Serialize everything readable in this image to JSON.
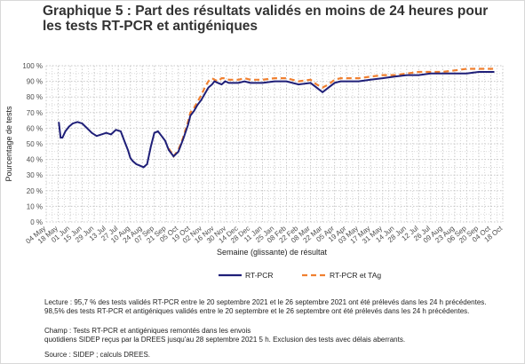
{
  "title_line1": "Graphique 5 : Part des résultats validés en moins de 24 heures pour",
  "title_line2": "les tests RT-PCR et antigéniques",
  "notes": {
    "lecture1": "Lecture : 95,7 % des tests validés RT-PCR entre le 20 septembre 2021 et le 26 septembre 2021 ont été prélevés dans les 24 h précédentes.",
    "lecture2": "98,5% des tests RT-PCR et antigéniques validés entre le 20 septembre et le 26 septembre ont été prélevés dans les 24 h précédentes.",
    "champ1": "Champ : Tests RT-PCR et antigéniques remontés dans les envois",
    "champ2": "quotidiens SIDEP reçus par la DREES jusqu'au 28 septembre 2021 5 h. Exclusion des tests avec délais aberrants.",
    "source": "Source : SIDEP ; calculs DREES."
  },
  "colors": {
    "rtpcr": "#1f1f78",
    "rtpcr_tag": "#f08030",
    "grid": "#c8c8c8"
  },
  "chart_data": {
    "type": "line",
    "xlabel": "Semaine (glissante) de résultat",
    "ylabel": "Pourcentage de tests",
    "ylim": [
      0,
      100
    ],
    "yticks": [
      "0 %",
      "10 %",
      "20 %",
      "30 %",
      "40 %",
      "50 %",
      "60 %",
      "70 %",
      "80 %",
      "90 %",
      "100 %"
    ],
    "xticks": [
      "04 May",
      "18 May",
      "01 Jun",
      "15 Jun",
      "29 Jun",
      "13 Jul",
      "27 Jul",
      "10 Aug",
      "24 Aug",
      "07 Sep",
      "21 Sep",
      "05 Oct",
      "19 Oct",
      "02 Nov",
      "16 Nov",
      "30 Nov",
      "14 Dec",
      "28 Dec",
      "11 Jan",
      "25 Jan",
      "08 Feb",
      "22 Feb",
      "08 Mar",
      "22 Mar",
      "05 Apr",
      "19 Apr",
      "03 May",
      "17 May",
      "31 May",
      "14 Jun",
      "28 Jun",
      "12 Jul",
      "26 Jul",
      "09 Aug",
      "23 Aug",
      "06 Sep",
      "20 Sep",
      "04 Oct",
      "18 Oct"
    ],
    "grid": true,
    "legend_position": "bottom",
    "series": [
      {
        "name": "RT-PCR",
        "style": "solid",
        "x": [
          1.05,
          1.2,
          1.35,
          1.6,
          1.9,
          2.2,
          2.6,
          3.0,
          3.4,
          3.8,
          4.2,
          4.6,
          5.0,
          5.4,
          5.8,
          6.2,
          6.5,
          6.8,
          7.0,
          7.2,
          7.5,
          7.8,
          8.1,
          8.4,
          8.7,
          9.0,
          9.3,
          9.6,
          9.9,
          10.2,
          10.6,
          11.0,
          11.4,
          11.8,
          12.0,
          12.3,
          12.6,
          12.9,
          13.2,
          13.5,
          13.8,
          14.0,
          14.3,
          14.6,
          14.9,
          15.2,
          15.6,
          16.0,
          16.5,
          17.0,
          17.5,
          18.0,
          19,
          20,
          21,
          22,
          22.5,
          23,
          23.5,
          24,
          24.5,
          25,
          25.5,
          26,
          27,
          28,
          29,
          30,
          31,
          32,
          33,
          34,
          35,
          36,
          37,
          37.3
        ],
        "y": [
          64,
          54,
          54,
          58,
          61,
          63,
          64,
          63,
          60,
          57,
          55,
          56,
          57,
          56,
          59,
          58,
          52,
          46,
          41,
          39,
          37,
          36,
          35,
          37,
          48,
          57,
          58,
          55,
          52,
          46,
          42,
          45,
          53,
          62,
          68,
          71,
          75,
          78,
          82,
          86,
          88,
          90,
          89,
          88,
          90,
          89,
          89,
          89,
          90,
          89,
          89,
          89,
          90,
          90,
          88,
          89,
          86,
          83,
          86,
          89,
          90,
          90,
          90,
          90,
          91,
          92,
          93,
          94,
          94,
          95,
          95,
          95,
          95,
          96,
          96,
          96
        ]
      },
      {
        "name": "RT-PCR et TAg",
        "style": "dashed",
        "x": [
          10.2,
          10.6,
          11.0,
          11.4,
          11.8,
          12.0,
          12.3,
          12.6,
          12.9,
          13.2,
          13.5,
          13.8,
          14.0,
          14.3,
          14.6,
          14.9,
          15.2,
          15.6,
          16.0,
          16.5,
          17.0,
          17.5,
          18.0,
          19,
          20,
          21,
          22,
          22.5,
          23,
          23.5,
          24,
          24.5,
          25,
          25.5,
          26,
          27,
          28,
          29,
          30,
          31,
          32,
          33,
          34,
          35,
          36,
          37,
          37.3
        ],
        "y": [
          47,
          42,
          46,
          54,
          64,
          70,
          73,
          77,
          81,
          86,
          90,
          92,
          91,
          90,
          92,
          92,
          91,
          91,
          91,
          92,
          91,
          91,
          91,
          92,
          92,
          90,
          91,
          88,
          86,
          88,
          91,
          92,
          92,
          92,
          92,
          93,
          94,
          94,
          95,
          96,
          96,
          96,
          97,
          98,
          98,
          98,
          98
        ]
      }
    ]
  }
}
